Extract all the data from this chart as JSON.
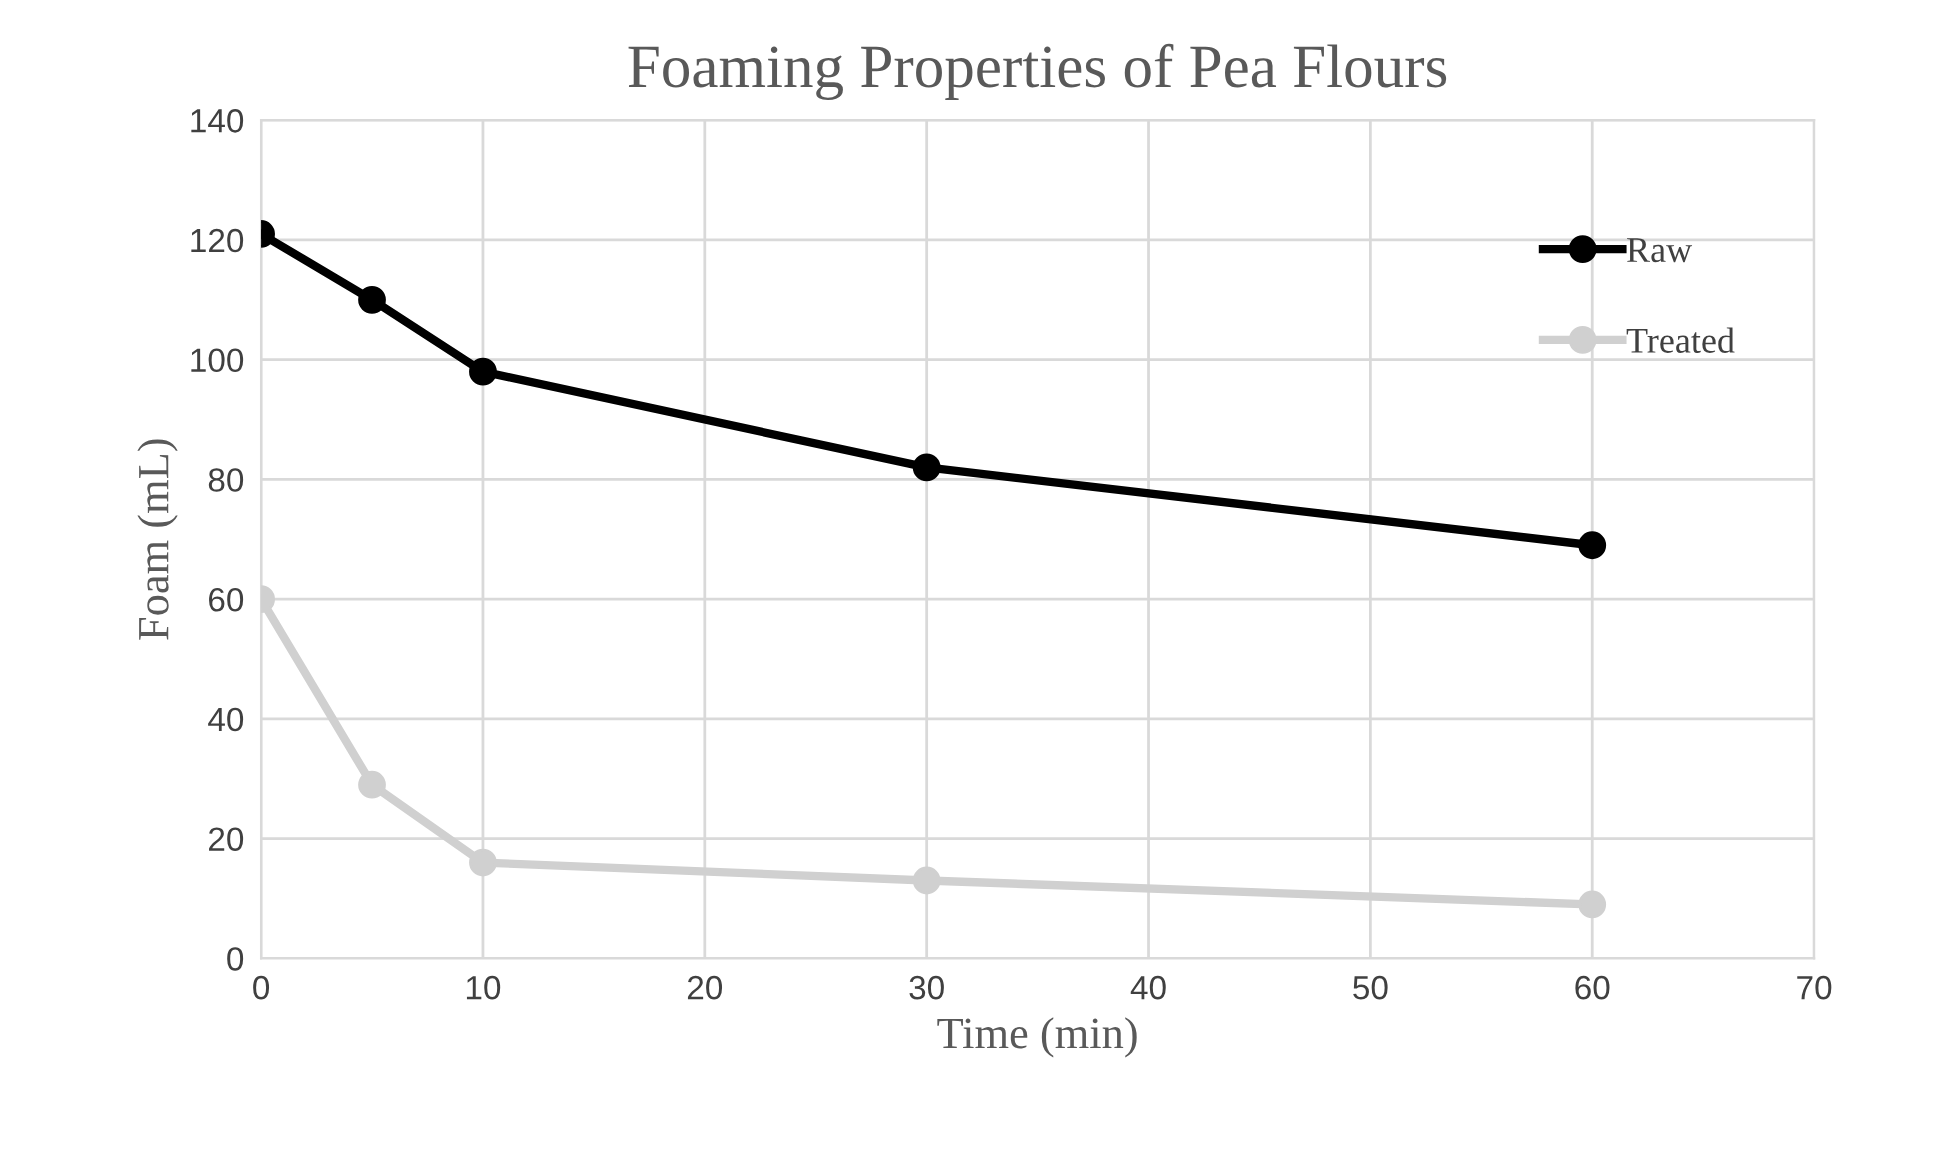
{
  "chart_data": {
    "type": "line",
    "title": "Foaming Properties of Pea Flours",
    "xlabel": "Time (min)",
    "ylabel": "Foam (mL)",
    "x": [
      0,
      5,
      10,
      30,
      60
    ],
    "series": [
      {
        "name": "Raw",
        "color": "#000000",
        "values": [
          121,
          110,
          98,
          82,
          69
        ]
      },
      {
        "name": "Treated",
        "color": "#d0d0d0",
        "values": [
          60,
          29,
          16,
          13,
          9
        ]
      }
    ],
    "xlim": [
      0,
      70
    ],
    "xticks": [
      0,
      10,
      20,
      30,
      40,
      50,
      60,
      70
    ],
    "ylim": [
      0,
      140
    ],
    "yticks": [
      0,
      20,
      40,
      60,
      80,
      100,
      120,
      140
    ],
    "grid": true,
    "legend": "top right",
    "marker": "circle",
    "line_style": "solid"
  }
}
